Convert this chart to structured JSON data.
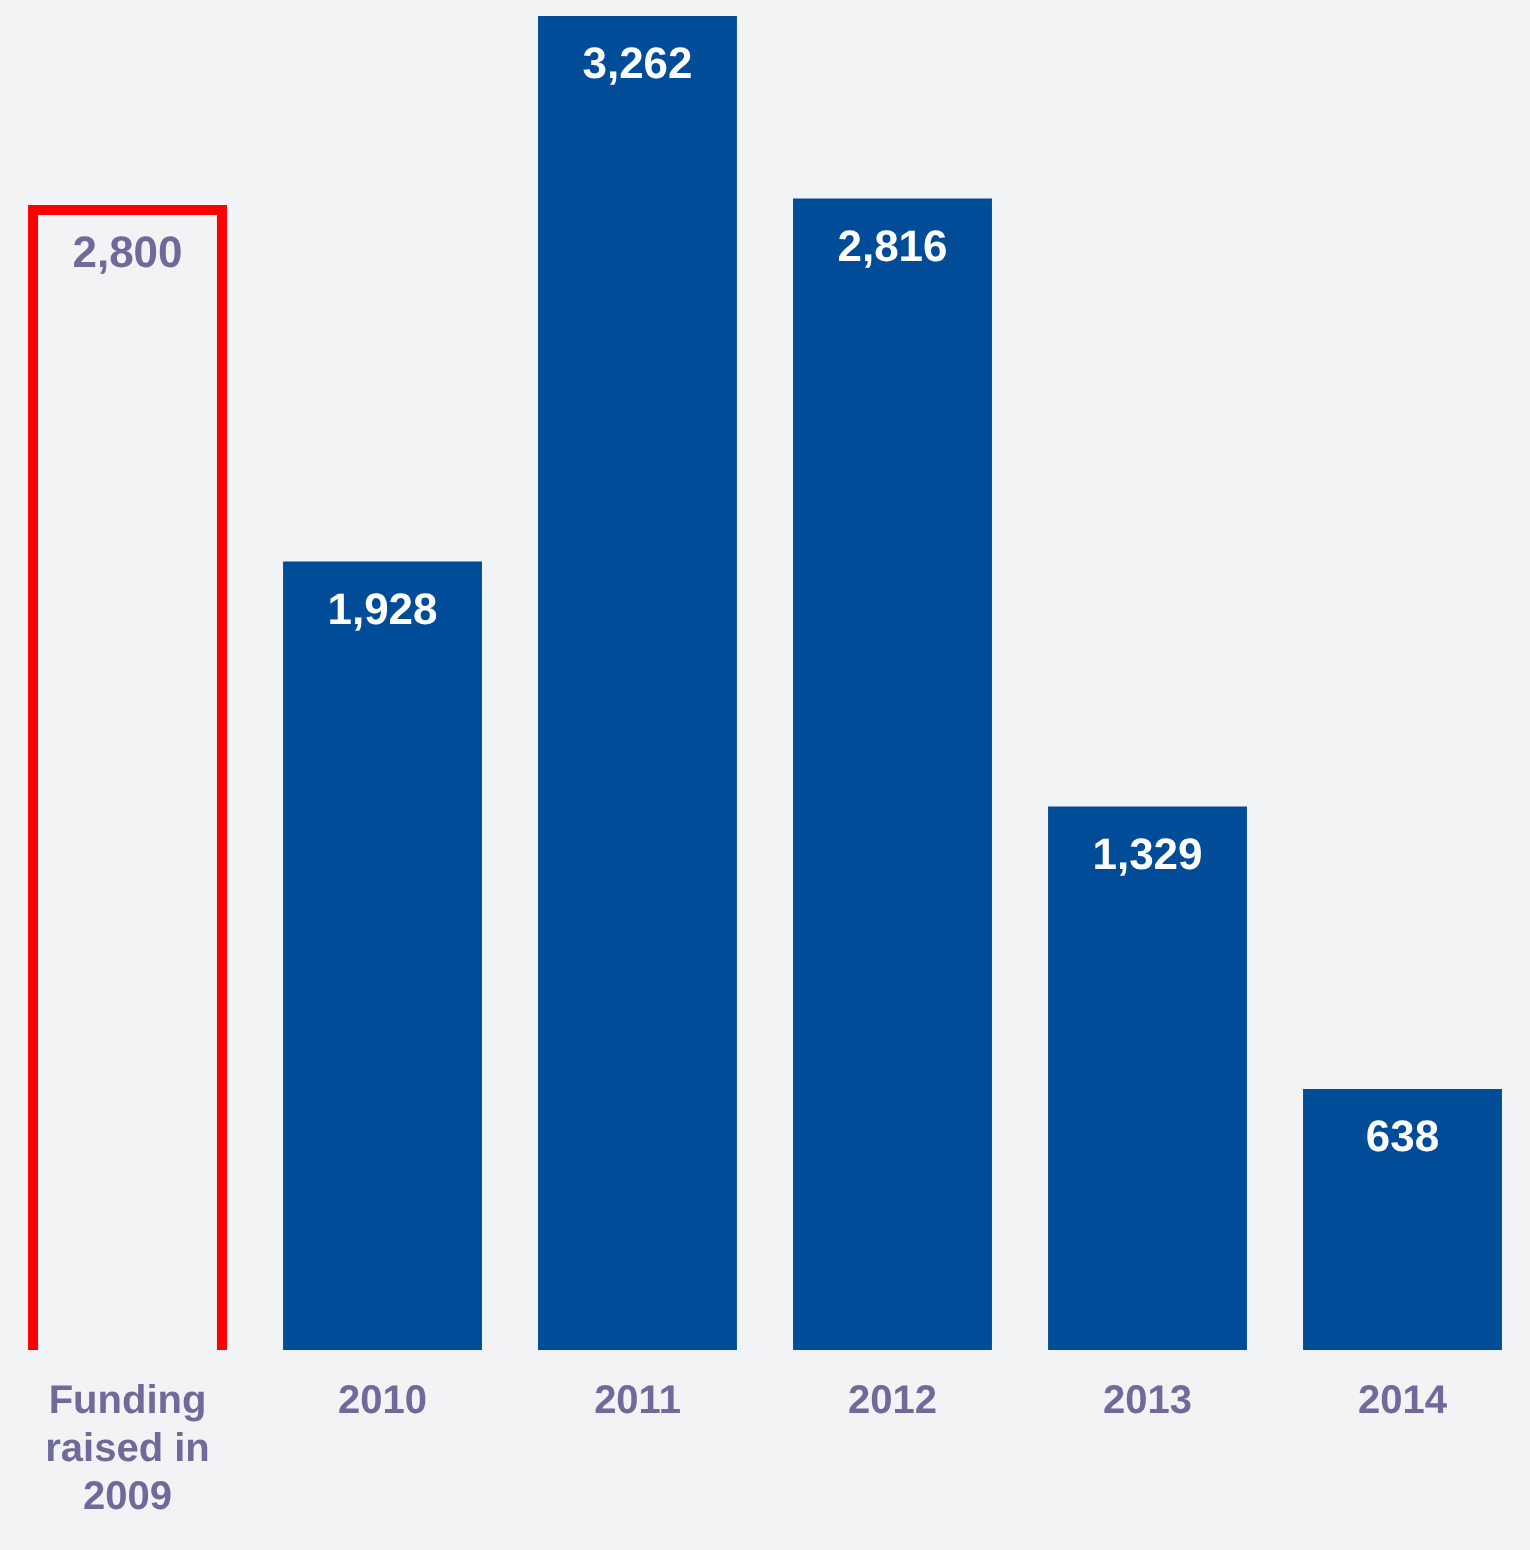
{
  "chart_data": {
    "type": "bar",
    "categories": [
      "Funding raised in 2009",
      "2010",
      "2011",
      "2012",
      "2013",
      "2014"
    ],
    "values": [
      2800,
      1928,
      3262,
      2816,
      1329,
      638
    ],
    "color": "#004c99",
    "colors": [
      "#ff0000",
      "#004c99",
      "#004c99",
      "#004c99",
      "#004c99",
      "#004c99"
    ],
    "value_labels": [
      "2,800",
      "1,928",
      "3,262",
      "2,816",
      "1,329",
      "638"
    ],
    "grid": false,
    "legend": false
  }
}
